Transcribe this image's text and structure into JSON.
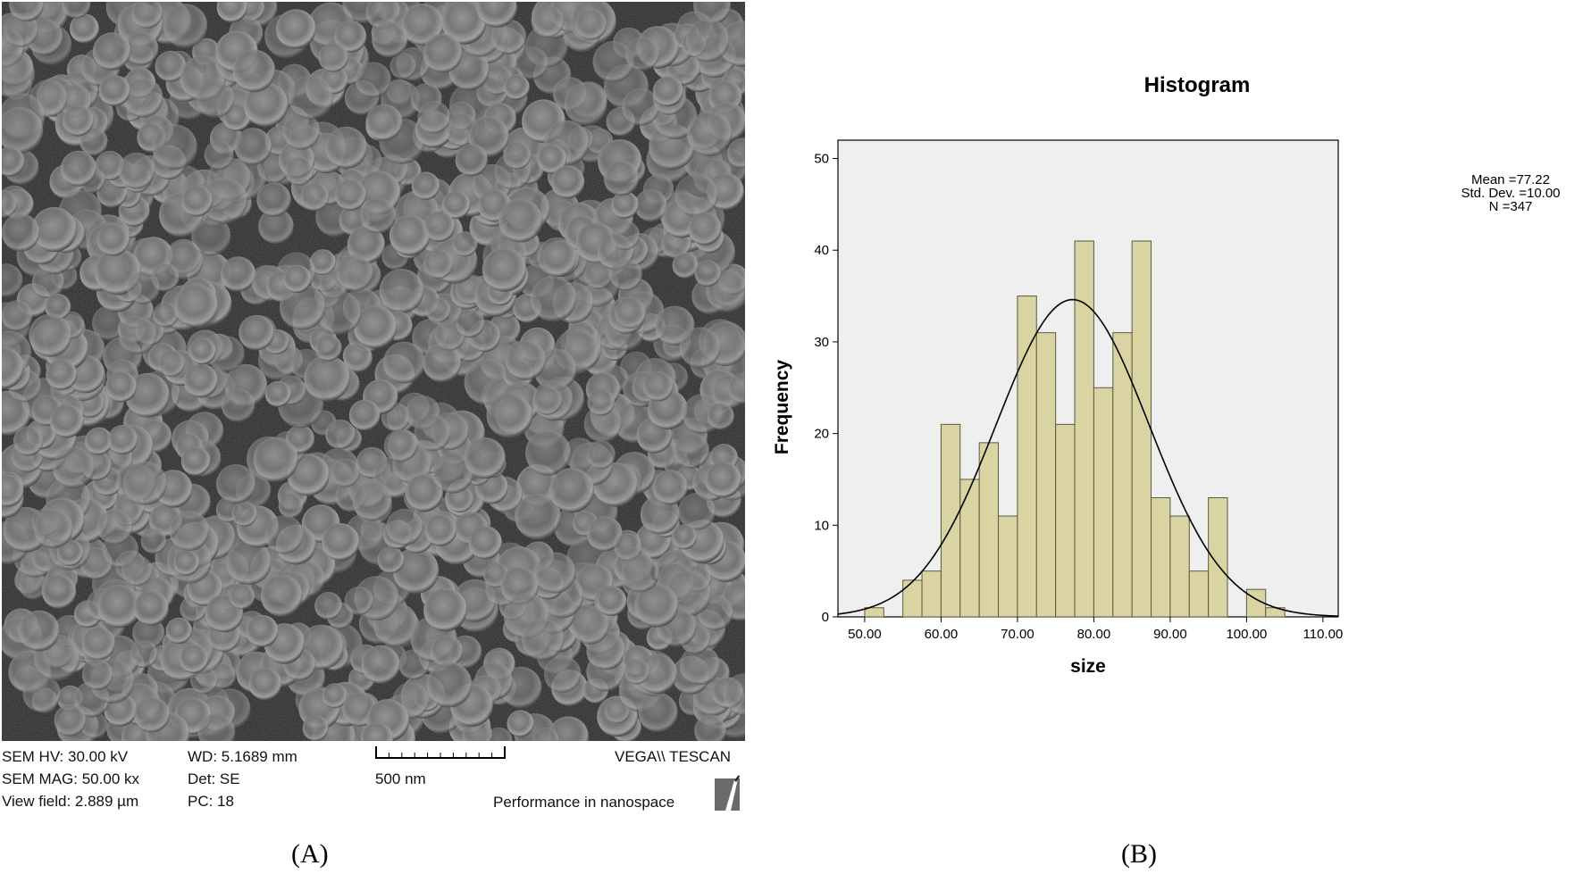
{
  "panel_a": {
    "label": "(A)",
    "info": {
      "hv": "SEM HV: 30.00 kV",
      "mag": "SEM MAG: 50.00 kx",
      "view_field": "View field: 2.889 µm",
      "wd": "WD: 5.1689 mm",
      "det": "Det: SE",
      "pc": "PC:  18",
      "scale": "500 nm",
      "brand": "VEGA\\\\ TESCAN",
      "tagline": "Performance in nanospace"
    }
  },
  "panel_b": {
    "label": "(B)",
    "stats": {
      "mean": "Mean =77.22",
      "std": "Std. Dev. =10.00",
      "n": "N =347"
    }
  },
  "chart_data": {
    "type": "bar",
    "title": "Histogram",
    "xlabel": "size",
    "ylabel": "Frequency",
    "bins": [
      {
        "x0": 50,
        "x1": 52.5,
        "count": 1
      },
      {
        "x0": 52.5,
        "x1": 55,
        "count": 0
      },
      {
        "x0": 55,
        "x1": 57.5,
        "count": 4
      },
      {
        "x0": 57.5,
        "x1": 60,
        "count": 5
      },
      {
        "x0": 60,
        "x1": 62.5,
        "count": 21
      },
      {
        "x0": 62.5,
        "x1": 65,
        "count": 15
      },
      {
        "x0": 65,
        "x1": 67.5,
        "count": 19
      },
      {
        "x0": 67.5,
        "x1": 70,
        "count": 11
      },
      {
        "x0": 70,
        "x1": 72.5,
        "count": 35
      },
      {
        "x0": 72.5,
        "x1": 75,
        "count": 31
      },
      {
        "x0": 75,
        "x1": 77.5,
        "count": 21
      },
      {
        "x0": 77.5,
        "x1": 80,
        "count": 41
      },
      {
        "x0": 80,
        "x1": 82.5,
        "count": 25
      },
      {
        "x0": 82.5,
        "x1": 85,
        "count": 31
      },
      {
        "x0": 85,
        "x1": 87.5,
        "count": 41
      },
      {
        "x0": 87.5,
        "x1": 90,
        "count": 13
      },
      {
        "x0": 90,
        "x1": 92.5,
        "count": 11
      },
      {
        "x0": 92.5,
        "x1": 95,
        "count": 5
      },
      {
        "x0": 95,
        "x1": 97.5,
        "count": 13
      },
      {
        "x0": 97.5,
        "x1": 100,
        "count": 0
      },
      {
        "x0": 100,
        "x1": 102.5,
        "count": 3
      },
      {
        "x0": 102.5,
        "x1": 105,
        "count": 1
      }
    ],
    "normal_curve": {
      "mean": 77.22,
      "std": 10.0,
      "n": 347,
      "bin_width": 2.5
    },
    "xlim": [
      46.5,
      112
    ],
    "ylim": [
      0,
      52
    ],
    "x_ticks": [
      "50.00",
      "60.00",
      "70.00",
      "80.00",
      "90.00",
      "100.00",
      "110.00"
    ],
    "y_ticks": [
      "0",
      "10",
      "20",
      "30",
      "40",
      "50"
    ],
    "bar_color": "#d9d4a2",
    "plot_background": "#efefef",
    "legend_position": "top-right"
  }
}
